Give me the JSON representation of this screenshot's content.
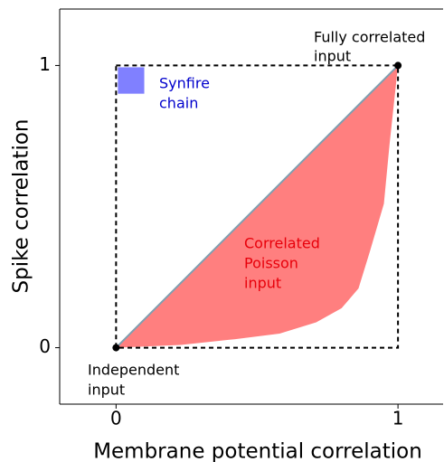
{
  "chart_data": {
    "type": "area",
    "xlabel": "Membrane potential correlation",
    "ylabel": "Spike correlation",
    "xlim": [
      -0.2,
      1.16
    ],
    "ylim": [
      -0.2,
      1.2
    ],
    "xticks": [
      0,
      1
    ],
    "yticks": [
      0,
      1
    ],
    "series": [
      {
        "name": [
          "Correlated",
          "Poisson",
          "input"
        ],
        "color": "#ff7f7f",
        "edge_color": "#7f9fb0",
        "x": [
          0,
          0.23,
          0.42,
          0.58,
          0.71,
          0.8,
          0.86,
          0.9,
          0.95,
          0.97,
          1
        ],
        "upper": [
          0,
          0.23,
          0.42,
          0.58,
          0.71,
          0.8,
          0.86,
          0.9,
          0.95,
          0.97,
          1
        ],
        "lower": [
          0,
          0.01,
          0.03,
          0.05,
          0.09,
          0.14,
          0.21,
          0.34,
          0.51,
          0.72,
          1
        ]
      }
    ],
    "regions": [
      {
        "name": [
          "Synfire",
          "chain"
        ],
        "color": "#8080ff",
        "x0": 0,
        "x1": 0.1,
        "y0": 0.9,
        "y1": 1
      }
    ],
    "points": [
      {
        "name": [
          "Independent",
          "input"
        ],
        "x": 0,
        "y": 0
      },
      {
        "name": [
          "Fully correlated",
          "input"
        ],
        "x": 1,
        "y": 1
      }
    ]
  }
}
